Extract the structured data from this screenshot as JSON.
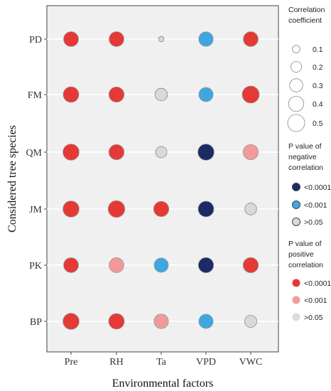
{
  "chart_data": {
    "type": "scatter",
    "subtype": "bubble-correlation-matrix",
    "xlabel": "Environmental factors",
    "ylabel": "Considered tree species",
    "x_categories": [
      "Pre",
      "RH",
      "Ta",
      "VPD",
      "VWC"
    ],
    "y_categories": [
      "PD",
      "FM",
      "QM",
      "JM",
      "PK",
      "BP"
    ],
    "grid": "horizontal",
    "legend_position": "right",
    "colors": {
      "neg_lt_0001": "#1c2a66",
      "neg_lt_001": "#3ea7df",
      "neg_gt_05": "#d9d9d9",
      "pos_lt_0001": "#e53935",
      "pos_lt_001": "#f29a9a",
      "pos_gt_05": "#dcdcdc",
      "panel_bg": "#f0f0f0"
    },
    "points": [
      {
        "species": "PD",
        "factor": "Pre",
        "abs_r": 0.38,
        "category": "pos_lt_0001"
      },
      {
        "species": "PD",
        "factor": "RH",
        "abs_r": 0.38,
        "category": "pos_lt_0001"
      },
      {
        "species": "PD",
        "factor": "Ta",
        "abs_r": 0.05,
        "category": "neg_gt_05"
      },
      {
        "species": "PD",
        "factor": "VPD",
        "abs_r": 0.36,
        "category": "neg_lt_001"
      },
      {
        "species": "PD",
        "factor": "VWC",
        "abs_r": 0.38,
        "category": "pos_lt_0001"
      },
      {
        "species": "FM",
        "factor": "Pre",
        "abs_r": 0.42,
        "category": "pos_lt_0001"
      },
      {
        "species": "FM",
        "factor": "RH",
        "abs_r": 0.4,
        "category": "pos_lt_0001"
      },
      {
        "species": "FM",
        "factor": "Ta",
        "abs_r": 0.27,
        "category": "neg_gt_05"
      },
      {
        "species": "FM",
        "factor": "VPD",
        "abs_r": 0.35,
        "category": "neg_lt_001"
      },
      {
        "species": "FM",
        "factor": "VWC",
        "abs_r": 0.5,
        "category": "pos_lt_0001"
      },
      {
        "species": "QM",
        "factor": "Pre",
        "abs_r": 0.45,
        "category": "pos_lt_0001"
      },
      {
        "species": "QM",
        "factor": "RH",
        "abs_r": 0.4,
        "category": "pos_lt_0001"
      },
      {
        "species": "QM",
        "factor": "Ta",
        "abs_r": 0.22,
        "category": "neg_gt_05"
      },
      {
        "species": "QM",
        "factor": "VPD",
        "abs_r": 0.45,
        "category": "neg_lt_0001"
      },
      {
        "species": "QM",
        "factor": "VWC",
        "abs_r": 0.4,
        "category": "pos_lt_001"
      },
      {
        "species": "JM",
        "factor": "Pre",
        "abs_r": 0.45,
        "category": "pos_lt_0001"
      },
      {
        "species": "JM",
        "factor": "RH",
        "abs_r": 0.48,
        "category": "pos_lt_0001"
      },
      {
        "species": "JM",
        "factor": "Ta",
        "abs_r": 0.4,
        "category": "pos_lt_0001"
      },
      {
        "species": "JM",
        "factor": "VPD",
        "abs_r": 0.42,
        "category": "neg_lt_0001"
      },
      {
        "species": "JM",
        "factor": "VWC",
        "abs_r": 0.24,
        "category": "neg_gt_05"
      },
      {
        "species": "PK",
        "factor": "Pre",
        "abs_r": 0.38,
        "category": "pos_lt_0001"
      },
      {
        "species": "PK",
        "factor": "RH",
        "abs_r": 0.38,
        "category": "pos_lt_001"
      },
      {
        "species": "PK",
        "factor": "Ta",
        "abs_r": 0.35,
        "category": "neg_lt_001"
      },
      {
        "species": "PK",
        "factor": "VPD",
        "abs_r": 0.4,
        "category": "neg_lt_0001"
      },
      {
        "species": "PK",
        "factor": "VWC",
        "abs_r": 0.4,
        "category": "pos_lt_0001"
      },
      {
        "species": "BP",
        "factor": "Pre",
        "abs_r": 0.45,
        "category": "pos_lt_0001"
      },
      {
        "species": "BP",
        "factor": "RH",
        "abs_r": 0.42,
        "category": "pos_lt_0001"
      },
      {
        "species": "BP",
        "factor": "Ta",
        "abs_r": 0.36,
        "category": "pos_lt_001"
      },
      {
        "species": "BP",
        "factor": "VPD",
        "abs_r": 0.35,
        "category": "neg_lt_001"
      },
      {
        "species": "BP",
        "factor": "VWC",
        "abs_r": 0.25,
        "category": "neg_gt_05"
      }
    ]
  },
  "legend": {
    "size_title_lines": [
      "Correlation",
      "coefficient"
    ],
    "size_items": [
      {
        "value": 0.1,
        "label": "0.1"
      },
      {
        "value": 0.2,
        "label": "0.2"
      },
      {
        "value": 0.3,
        "label": "0.3"
      },
      {
        "value": 0.4,
        "label": "0.4"
      },
      {
        "value": 0.5,
        "label": "0.5"
      }
    ],
    "neg_title_lines": [
      "P value of",
      "negative",
      "correlation"
    ],
    "neg_items": [
      {
        "label": "<0.0001",
        "category": "neg_lt_0001"
      },
      {
        "label": "<0.001",
        "category": "neg_lt_001"
      },
      {
        "label": ">0.05",
        "category": "neg_gt_05"
      }
    ],
    "pos_title_lines": [
      "P value of",
      "positive",
      "correlation"
    ],
    "pos_items": [
      {
        "label": "<0.0001",
        "category": "pos_lt_0001"
      },
      {
        "label": "<0.001",
        "category": "pos_lt_001"
      },
      {
        "label": ">0.05",
        "category": "pos_gt_05"
      }
    ]
  }
}
